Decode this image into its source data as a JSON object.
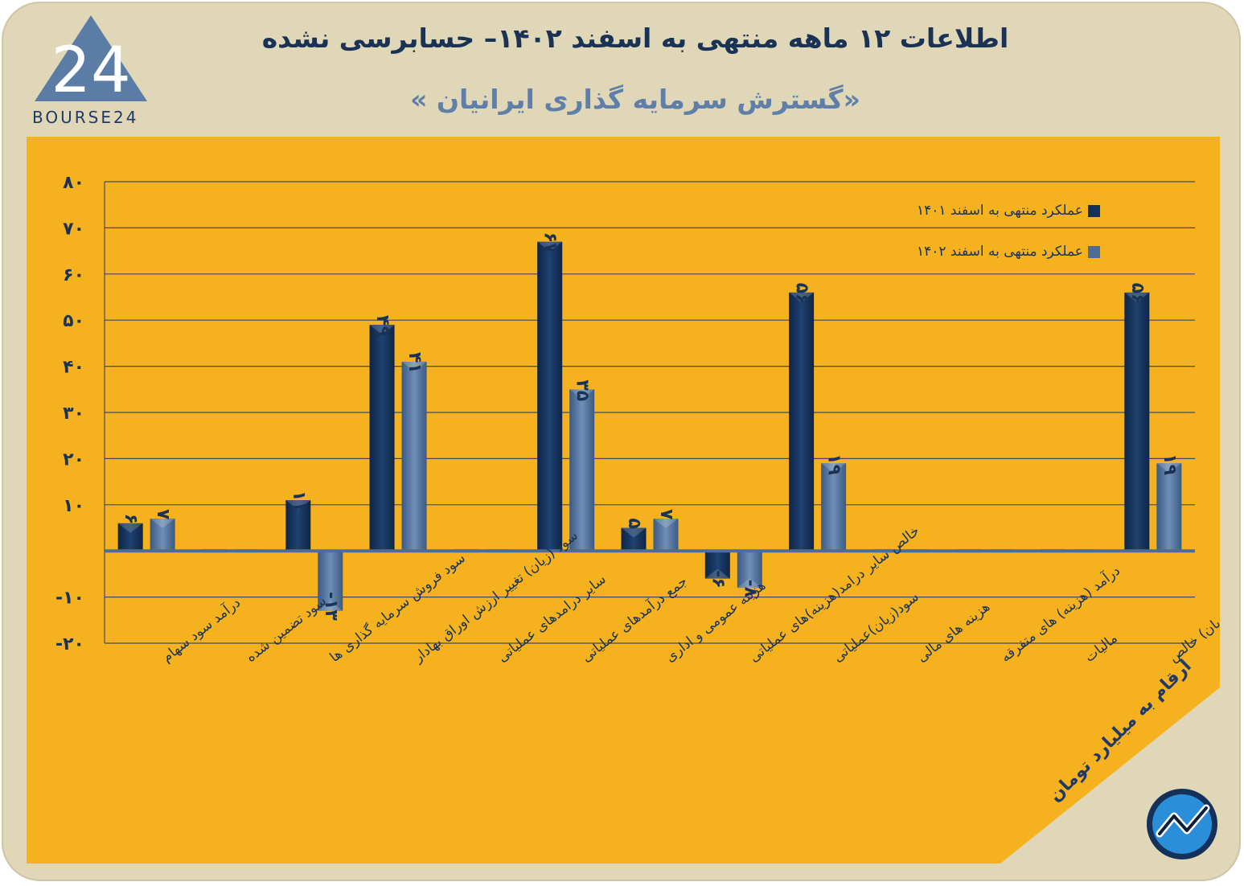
{
  "header": {
    "title": "اطلاعات ۱۲ ماهه منتهی به اسفند ۱۴۰۲– حسابرسی نشده",
    "subtitle": "«گسترش سرمایه گذاری ایرانیان »",
    "logo_text": "BOURSE24",
    "logo_mark": "24"
  },
  "units_note": "ارقام به میلیارد تومان",
  "colors": {
    "background": "#e0d6b8",
    "panel": "#f5b21e",
    "series_1401": "#14315a",
    "series_1402": "#4e6d96",
    "grid": "#3f4b5c",
    "zero_line": "#4e6d96",
    "text": "#1a3354"
  },
  "chart_data": {
    "type": "bar",
    "title": "اطلاعات ۱۲ ماهه منتهی به اسفند ۱۴۰۲– حسابرسی نشده",
    "ylim": [
      -20,
      80
    ],
    "yticks": [
      -20,
      -10,
      0,
      10,
      20,
      30,
      40,
      50,
      60,
      70,
      80
    ],
    "ytick_labels": [
      "-۲۰",
      "-۱۰",
      "",
      "۱۰",
      "۲۰",
      "۳۰",
      "۴۰",
      "۵۰",
      "۶۰",
      "۷۰",
      "۸۰"
    ],
    "grid": true,
    "legend_position": "top-right",
    "categories": [
      "درآمد سود سهام",
      "سود تضمین شده",
      "سود فروش سرمایه گذاری ها",
      "سود (زیان) تغییر ارزش اوراق بهادار",
      "سایر درامدهای عملیاتی",
      "جمع درآمدهای عملیاتی",
      "هزینه عمومی و اداری",
      "خالص سایر درامد(هزینه)های عملیاتی",
      "سود(زیان)عملیاتی",
      "هزینه های مالی",
      "درآمد (هزینه) های متفرقه",
      "مالیات",
      "سود(زیان) خالص"
    ],
    "series": [
      {
        "name": "عملکرد منتهی به اسفند ۱۴۰۱",
        "values": [
          6,
          0,
          11,
          49,
          0,
          67,
          5,
          -6,
          56,
          0,
          0,
          0,
          56
        ],
        "labels": [
          "۶",
          "",
          "۱۱",
          "۴۹",
          "",
          "۶۷",
          "۵",
          "-۶",
          "۵۶",
          "",
          "",
          "",
          "۵۶"
        ]
      },
      {
        "name": "عملکرد منتهی به اسفند ۱۴۰۲",
        "values": [
          7,
          0,
          -13,
          41,
          0,
          35,
          7,
          -8,
          19,
          0,
          0,
          0,
          19
        ],
        "labels": [
          "۷",
          "",
          "-۱۳",
          "۴۱",
          "",
          "۳۵",
          "۷",
          "-۸",
          "۱۹",
          "",
          "",
          "",
          "۱۹"
        ]
      }
    ]
  }
}
